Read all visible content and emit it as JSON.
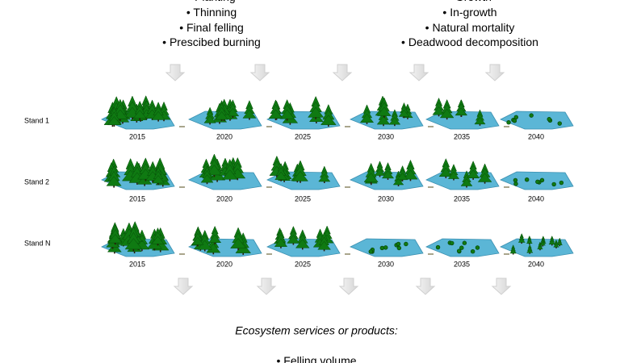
{
  "top_left": {
    "items": [
      "Planting",
      "Thinning",
      "Final felling",
      "Prescibed burning"
    ]
  },
  "top_right": {
    "items": [
      "Growth",
      "In-growth",
      "Natural mortality",
      "Deadwood decomposition"
    ]
  },
  "stands": [
    {
      "label": "Stand 1",
      "years": [
        2015,
        2020,
        2025,
        2030,
        2035,
        2040
      ]
    },
    {
      "label": "Stand 2",
      "years": [
        2015,
        2020,
        2025,
        2030,
        2035,
        2040
      ]
    },
    {
      "label": "Stand N",
      "years": [
        2015,
        2020,
        2025,
        2030,
        2035,
        2040
      ]
    }
  ],
  "bottom": {
    "title": "Ecosystem services or products:",
    "items": [
      "Felling volume"
    ]
  }
}
